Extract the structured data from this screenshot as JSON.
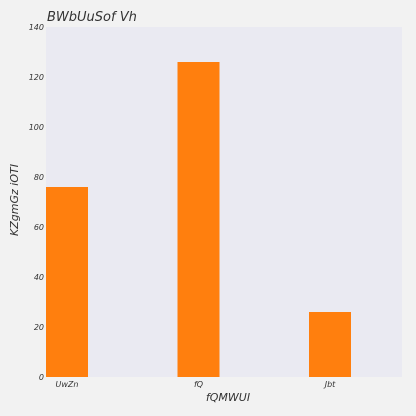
{
  "chart_data": {
    "type": "bar",
    "title": "BWbUuSof Vh",
    "xlabel": "fQMWUI",
    "ylabel": "KZgmGz  iOTI",
    "categories": [
      "UwZn",
      "fQ",
      "Jbt"
    ],
    "values": [
      76,
      126,
      26
    ],
    "ylim": [
      0,
      140
    ],
    "yticks": [
      0,
      20,
      40,
      60,
      80,
      100,
      120,
      140
    ],
    "grid": false,
    "legend": "none",
    "bar_color": "#ff7f0e",
    "plot_background": "#eaeaf2",
    "figure_background": "#f2f2f2"
  }
}
